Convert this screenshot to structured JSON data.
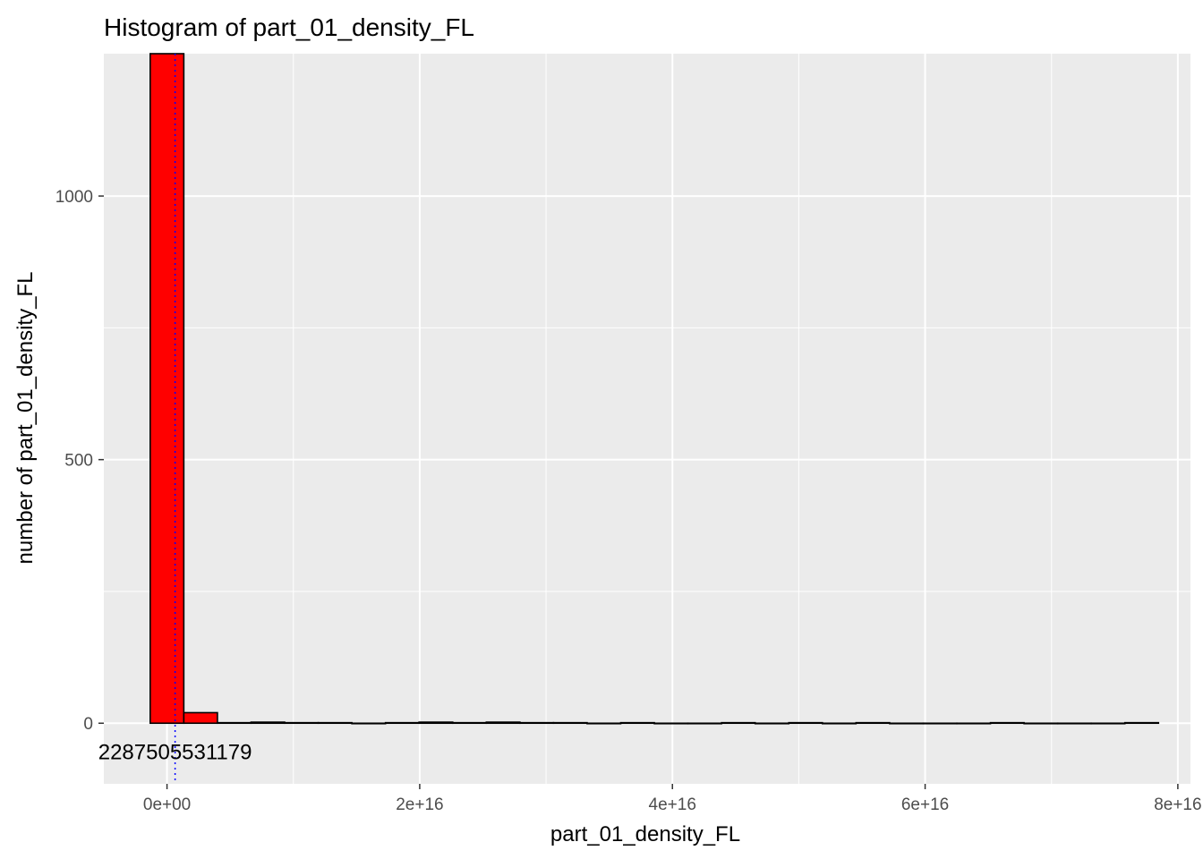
{
  "chart_data": {
    "type": "bar",
    "title": "Histogram of  part_01_density_FL",
    "xlabel": "part_01_density_FL",
    "ylabel": "number of  part_01_density_FL",
    "xlim": [
      -5000000000000000.0,
      8.1e+16
    ],
    "ylim": [
      -115,
      1270
    ],
    "x_ticks": [
      0,
      2e+16,
      4e+16,
      6e+16,
      8e+16
    ],
    "x_tick_labels": [
      "0e+00",
      "2e+16",
      "4e+16",
      "6e+16",
      "8e+16"
    ],
    "y_ticks": [
      0,
      500,
      1000
    ],
    "y_tick_labels": [
      "0",
      "500",
      "1000"
    ],
    "grid": true,
    "bin_width": 2660000000000000.0,
    "bins": [
      {
        "x": 0,
        "count": 1270
      },
      {
        "x": 2660000000000000.0,
        "count": 20
      },
      {
        "x": 5320000000000000.0,
        "count": 1
      },
      {
        "x": 7980000000000000.0,
        "count": 2
      },
      {
        "x": 1.064e+16,
        "count": 1
      },
      {
        "x": 1.33e+16,
        "count": 1
      },
      {
        "x": 1.596e+16,
        "count": 0
      },
      {
        "x": 1.862e+16,
        "count": 1
      },
      {
        "x": 2.128e+16,
        "count": 2
      },
      {
        "x": 2.394e+16,
        "count": 1
      },
      {
        "x": 2.66e+16,
        "count": 2
      },
      {
        "x": 2.926e+16,
        "count": 1
      },
      {
        "x": 3.192e+16,
        "count": 1
      },
      {
        "x": 3.458e+16,
        "count": 0
      },
      {
        "x": 3.724e+16,
        "count": 1
      },
      {
        "x": 3.99e+16,
        "count": 0
      },
      {
        "x": 4.256e+16,
        "count": 0
      },
      {
        "x": 4.522e+16,
        "count": 1
      },
      {
        "x": 4.788e+16,
        "count": 0
      },
      {
        "x": 5.054e+16,
        "count": 1
      },
      {
        "x": 5.32e+16,
        "count": 0
      },
      {
        "x": 5.586e+16,
        "count": 1
      },
      {
        "x": 5.852e+16,
        "count": 0
      },
      {
        "x": 6.118e+16,
        "count": 0
      },
      {
        "x": 6.384e+16,
        "count": 0
      },
      {
        "x": 6.65e+16,
        "count": 1
      },
      {
        "x": 6.916e+16,
        "count": 0
      },
      {
        "x": 7.182e+16,
        "count": 0
      },
      {
        "x": 7.448e+16,
        "count": 0
      },
      {
        "x": 7.714e+16,
        "count": 1
      }
    ],
    "reference_line": {
      "x": 640000000000000.0,
      "style": "dotted",
      "color": "#0000ff"
    },
    "annotation": {
      "text": "2287505531179",
      "x": 640000000000000.0,
      "y": -55
    },
    "colors": {
      "bar_fill": "#ff0000",
      "bar_outline": "#000000",
      "panel": "#ebebeb",
      "grid": "#ffffff"
    }
  }
}
